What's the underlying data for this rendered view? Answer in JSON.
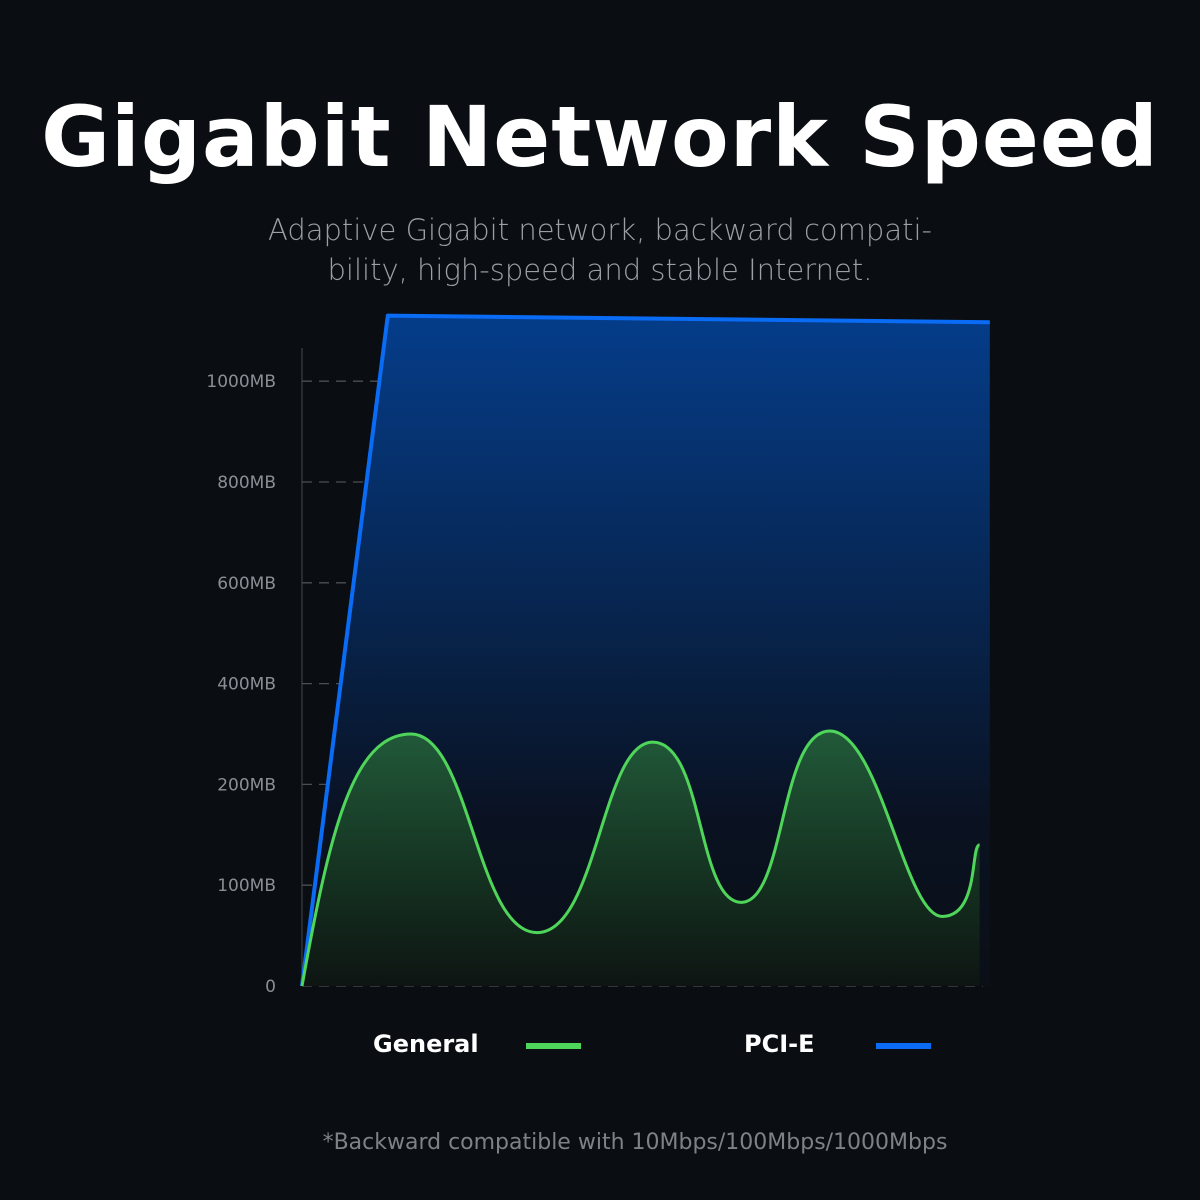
{
  "header": {
    "title": "Gigabit Network Speed",
    "subtitle": "Adaptive Gigabit network, backward compati-bility, high-speed and stable Internet."
  },
  "chart_data": {
    "type": "area",
    "title": "Gigabit Network Speed",
    "ylabel": "",
    "xlabel": "",
    "y_ticks": [
      "0",
      "100MB",
      "200MB",
      "400MB",
      "600MB",
      "800MB",
      "1000MB"
    ],
    "y_tick_values": [
      0,
      100,
      200,
      400,
      600,
      800,
      1000
    ],
    "grid": true,
    "legend_placement": "bottom",
    "series": [
      {
        "name": "General",
        "color": "#4fd65a",
        "x": [
          0,
          16,
          34.5,
          51.5,
          64.5,
          77.5,
          94,
          99.5
        ],
        "values": [
          0,
          300,
          53,
          284,
          83,
          306,
          69,
          140
        ]
      },
      {
        "name": "PCI-E",
        "color": "#0a6cf5",
        "x": [
          0,
          12.6,
          101
        ],
        "values": [
          0,
          1130,
          1117
        ]
      }
    ]
  },
  "legend": {
    "general": "General",
    "pcie": "PCI-E"
  },
  "footnote": "*Backward compatible with 10Mbps/100Mbps/1000Mbps"
}
